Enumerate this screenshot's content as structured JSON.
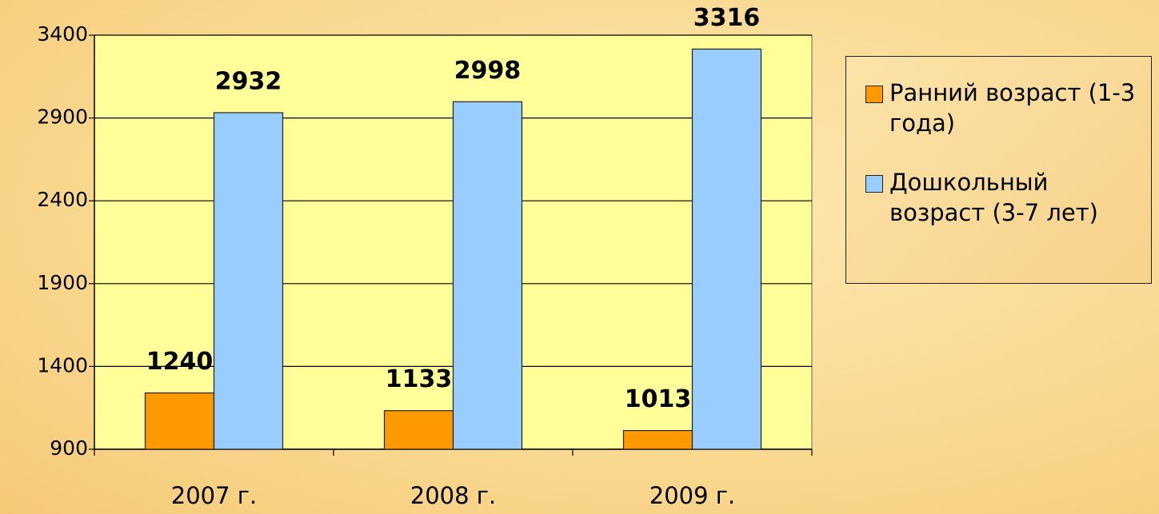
{
  "chart_data": {
    "type": "bar",
    "categories": [
      "2007 г.",
      "2008 г.",
      "2009 г."
    ],
    "series": [
      {
        "name": "Ранний возраст (1-3 года)",
        "color": "#ff9900",
        "values": [
          1240,
          1133,
          1013
        ]
      },
      {
        "name": "Дошкольный возраст (3-7 лет)",
        "color": "#99ccff",
        "values": [
          2932,
          2998,
          3316
        ]
      }
    ],
    "ylim": [
      900,
      3400
    ],
    "yticks": [
      900,
      1400,
      1900,
      2400,
      2900,
      3400
    ],
    "grid": true,
    "legend": "right"
  }
}
